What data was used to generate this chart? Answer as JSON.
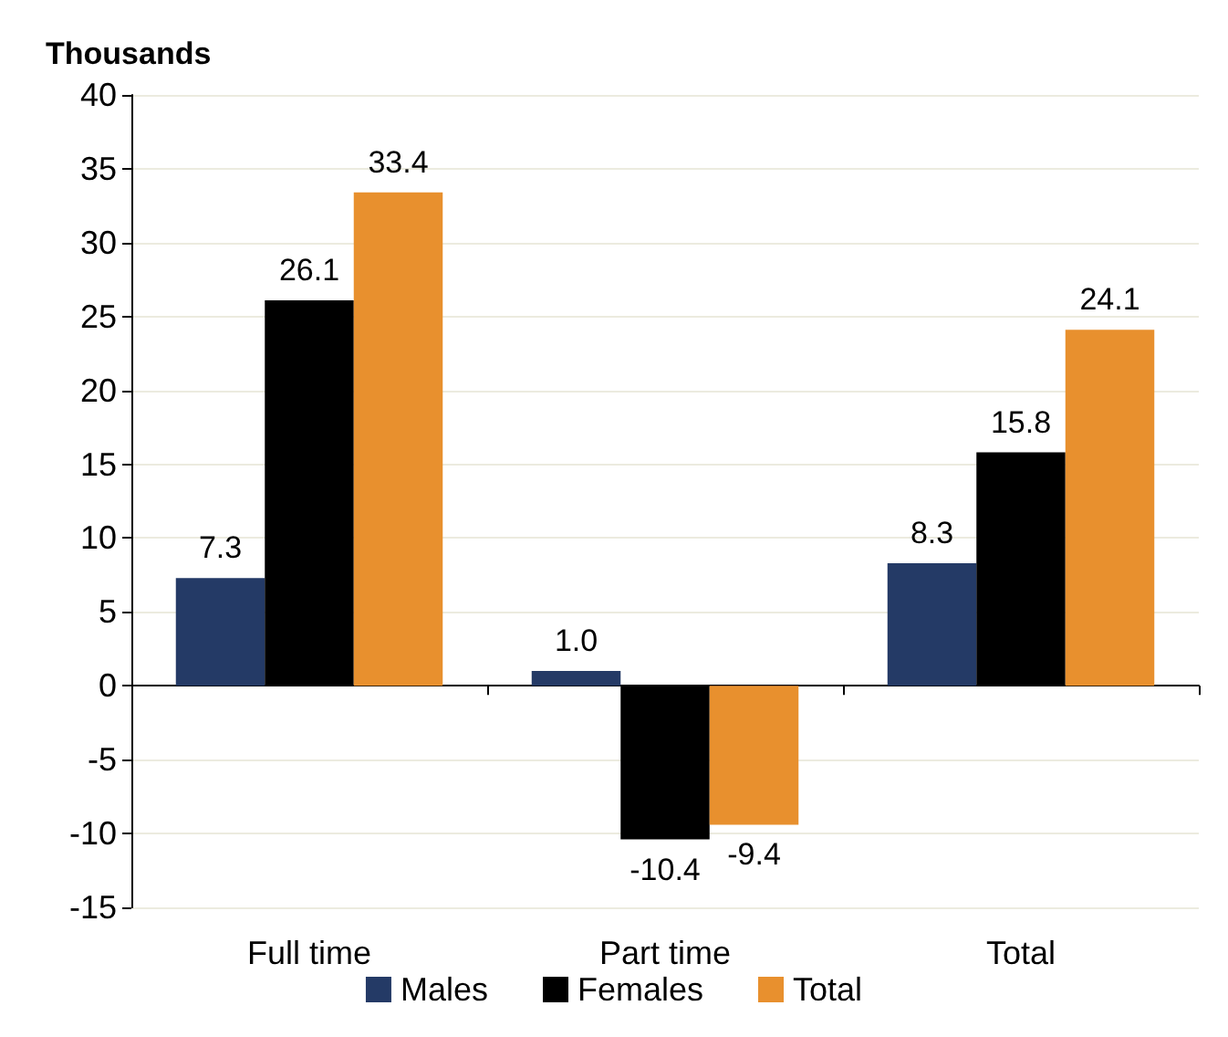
{
  "chart_data": {
    "type": "bar",
    "ylabel": "Thousands",
    "categories": [
      "Full time",
      "Part time",
      "Total"
    ],
    "series": [
      {
        "name": "Males",
        "color": "#243a66",
        "values": [
          7.3,
          1.0,
          8.3
        ],
        "value_labels": [
          "7.3",
          "1.0",
          "8.3"
        ]
      },
      {
        "name": "Females",
        "color": "#000000",
        "values": [
          26.1,
          -10.4,
          15.8
        ],
        "value_labels": [
          "26.1",
          "-10.4",
          "15.8"
        ]
      },
      {
        "name": "Total",
        "color": "#e8902e",
        "values": [
          33.4,
          -9.4,
          24.1
        ],
        "value_labels": [
          "33.4",
          "-9.4",
          "24.1"
        ]
      }
    ],
    "ylim": [
      -15,
      40
    ],
    "yticks": [
      -15,
      -10,
      -5,
      0,
      5,
      10,
      15,
      20,
      25,
      30,
      35,
      40
    ],
    "grid": "y",
    "legend": "bottom"
  }
}
